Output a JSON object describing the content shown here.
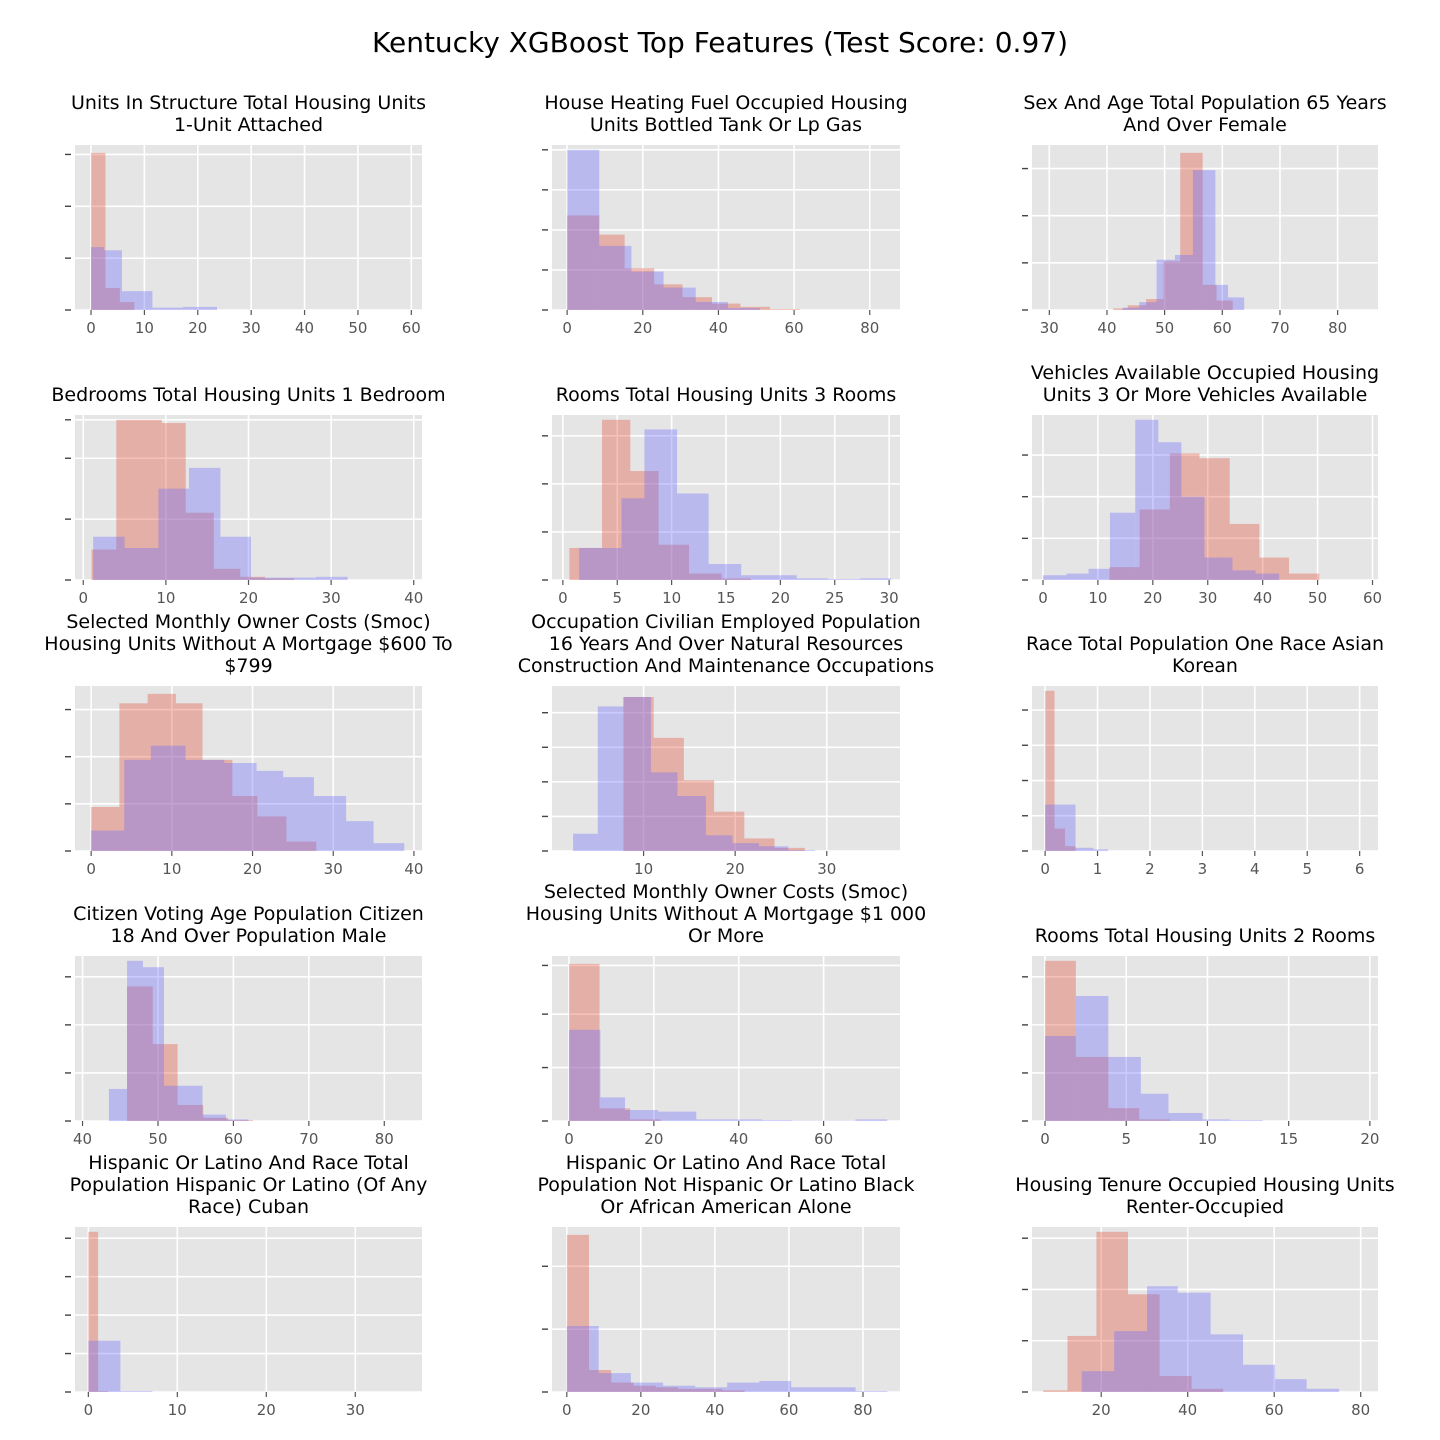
{
  "colors": {
    "panel_bg": "#e5e5e5",
    "grid": "#ffffff",
    "series_a": "#e24a33",
    "series_b": "#6666ff",
    "tick_label": "#555555"
  },
  "chart_data": {
    "title": "Kentucky XGBoost Top Features (Test Score: 0.97)",
    "grid": true,
    "panels": [
      {
        "type": "bar",
        "title": [
          "Units In Structure Total Housing Units",
          "1-Unit Attached"
        ],
        "xlim": [
          -3,
          62
        ],
        "ylim": [
          0,
          1.05
        ],
        "xticks": [
          0,
          10,
          20,
          30,
          40,
          50,
          60
        ],
        "yticks": [
          0,
          0.33,
          0.66,
          0.99
        ],
        "series": [
          {
            "edges": [
              0,
              2.7,
              5.4,
              8.1,
              10.8,
              13.5
            ],
            "values": [
              1.0,
              0.14,
              0.05,
              0.0,
              0.0
            ]
          },
          {
            "edges": [
              0,
              2.4,
              5.8,
              11.5,
              17.2,
              23.6
            ],
            "values": [
              0.4,
              0.38,
              0.12,
              0.015,
              0.02
            ]
          }
        ]
      },
      {
        "type": "bar",
        "title": [
          "House Heating Fuel Occupied Housing",
          "Units Bottled Tank Or Lp Gas"
        ],
        "xlim": [
          -4,
          88
        ],
        "ylim": [
          0,
          1.03
        ],
        "xticks": [
          0,
          20,
          40,
          60,
          80
        ],
        "yticks": [
          0,
          0.25,
          0.5,
          0.75,
          1.0
        ],
        "series": [
          {
            "edges": [
              0,
              8.5,
              15.2,
              23.0,
              30.5,
              38.3,
              45.8,
              53.6,
              61.5
            ],
            "values": [
              0.59,
              0.47,
              0.26,
              0.16,
              0.08,
              0.04,
              0.02,
              0.005
            ]
          },
          {
            "edges": [
              0,
              8.5,
              17.0,
              25.5,
              34.0,
              42.5,
              51.0
            ],
            "values": [
              1.0,
              0.4,
              0.24,
              0.14,
              0.05,
              0.012
            ]
          }
        ]
      },
      {
        "type": "bar",
        "title": [
          "Sex And Age Total Population 65 Years",
          "And Over Female"
        ],
        "xlim": [
          27,
          87
        ],
        "ylim": [
          0,
          1.05
        ],
        "xticks": [
          30,
          40,
          50,
          60,
          70,
          80
        ],
        "yticks": [
          0,
          0.3,
          0.6,
          0.9
        ],
        "series": [
          {
            "edges": [
              41.1,
              43.6,
              46.8,
              49.8,
              52.7,
              56.6,
              59.0,
              61.8
            ],
            "values": [
              0.01,
              0.03,
              0.07,
              0.31,
              1.0,
              0.16,
              0.06
            ]
          },
          {
            "edges": [
              42.7,
              45.6,
              48.6,
              51.8,
              54.9,
              58.8,
              61.0,
              63.8
            ],
            "values": [
              0.015,
              0.05,
              0.32,
              0.35,
              0.89,
              0.16,
              0.08
            ]
          }
        ]
      },
      {
        "type": "bar",
        "title": [
          "Bedrooms Total Housing Units 1 Bedroom"
        ],
        "xlim": [
          -1,
          41
        ],
        "ylim": [
          0,
          1.03
        ],
        "xticks": [
          0,
          10,
          20,
          30,
          40
        ],
        "yticks": [
          0,
          0.38,
          0.76,
          1.0
        ],
        "series": [
          {
            "edges": [
              1.0,
              4.0,
              9.5,
              12.4,
              15.8,
              19.0,
              22.0,
              25.5
            ],
            "values": [
              0.19,
              1.0,
              0.98,
              0.42,
              0.07,
              0.02,
              0.01
            ]
          },
          {
            "edges": [
              1.2,
              5.0,
              9.1,
              12.8,
              16.6,
              20.3,
              24.0,
              28.2,
              32.0
            ],
            "values": [
              0.27,
              0.2,
              0.57,
              0.7,
              0.27,
              0.015,
              0.015,
              0.02
            ]
          }
        ]
      },
      {
        "type": "bar",
        "title": [
          "Rooms Total Housing Units 3 Rooms"
        ],
        "xlim": [
          -1,
          31
        ],
        "ylim": [
          0,
          1.03
        ],
        "xticks": [
          0,
          5,
          10,
          15,
          20,
          25,
          30
        ],
        "yticks": [
          0,
          0.3,
          0.6,
          0.9
        ],
        "series": [
          {
            "edges": [
              0.6,
              3.6,
              6.2,
              8.8,
              11.6,
              14.6,
              17.3
            ],
            "values": [
              0.2,
              1.0,
              0.68,
              0.22,
              0.04,
              0.01
            ]
          },
          {
            "edges": [
              1.5,
              5.4,
              7.5,
              10.5,
              13.4,
              16.4,
              21.5,
              24.4,
              27.3,
              30.2
            ],
            "values": [
              0.2,
              0.51,
              0.94,
              0.54,
              0.1,
              0.03,
              0.01,
              0.005,
              0.01
            ]
          }
        ]
      },
      {
        "type": "bar",
        "title": [
          "Vehicles Available Occupied Housing",
          "Units 3 Or More Vehicles Available"
        ],
        "xlim": [
          -2,
          61
        ],
        "ylim": [
          0,
          1.03
        ],
        "xticks": [
          0,
          10,
          20,
          30,
          40,
          50,
          60
        ],
        "yticks": [
          0,
          0.26,
          0.52,
          0.78
        ],
        "series": [
          {
            "edges": [
              12.1,
              17.6,
              23.1,
              28.5,
              34.0,
              39.4,
              44.8,
              50.3
            ],
            "values": [
              0.08,
              0.44,
              0.79,
              0.76,
              0.35,
              0.14,
              0.04,
              0.01
            ]
          },
          {
            "edges": [
              0,
              4.3,
              8.3,
              12.2,
              16.8,
              21.0,
              25.2,
              29.4,
              34.5,
              38.7,
              43.0
            ],
            "values": [
              0.03,
              0.04,
              0.07,
              0.42,
              1.0,
              0.86,
              0.52,
              0.14,
              0.06,
              0.04
            ]
          }
        ]
      },
      {
        "type": "bar",
        "title": [
          "Selected Monthly Owner Costs (Smoc)",
          "Housing Units Without A Mortgage $600 To",
          "$799"
        ],
        "xlim": [
          -2,
          41
        ],
        "ylim": [
          0,
          1.05
        ],
        "xticks": [
          0,
          10,
          20,
          30,
          40
        ],
        "yticks": [
          0,
          0.3,
          0.6,
          0.9
        ],
        "series": [
          {
            "edges": [
              0,
              3.5,
              7.0,
              10.5,
              13.8,
              17.5,
              20.6,
              24.2,
              27.9
            ],
            "values": [
              0.28,
              0.94,
              1.0,
              0.94,
              0.58,
              0.35,
              0.22,
              0.06
            ]
          },
          {
            "edges": [
              0,
              4.1,
              7.4,
              11.7,
              16.5,
              20.5,
              23.8,
              27.6,
              31.6,
              35.0,
              38.8
            ],
            "values": [
              0.13,
              0.58,
              0.67,
              0.58,
              0.56,
              0.51,
              0.47,
              0.35,
              0.19,
              0.05
            ]
          }
        ]
      },
      {
        "type": "bar",
        "title": [
          "Occupation Civilian Employed Population",
          "16 Years And Over Natural Resources",
          "Construction And Maintenance Occupations"
        ],
        "xlim": [
          0,
          38
        ],
        "ylim": [
          0,
          1.05
        ],
        "xticks": [
          10,
          20,
          30
        ],
        "yticks": [
          0,
          0.22,
          0.44,
          0.66,
          0.88
        ],
        "series": [
          {
            "edges": [
              7.8,
              11.1,
              14.4,
              17.7,
              21.0,
              24.3,
              27.6
            ],
            "values": [
              0.98,
              0.72,
              0.45,
              0.25,
              0.08,
              0.02
            ]
          },
          {
            "edges": [
              2.3,
              5.0,
              7.8,
              10.8,
              13.7,
              16.8,
              19.7,
              22.6,
              25.8,
              28.7
            ],
            "values": [
              0.11,
              0.92,
              0.98,
              0.5,
              0.35,
              0.1,
              0.05,
              0.03,
              0.005
            ]
          }
        ]
      },
      {
        "type": "bar",
        "title": [
          "Race Total Population One Race Asian",
          "Korean"
        ],
        "xlim": [
          -0.25,
          6.35
        ],
        "ylim": [
          0,
          1.03
        ],
        "xticks": [
          0,
          1,
          2,
          3,
          4,
          5,
          6
        ],
        "yticks": [
          0,
          0.22,
          0.44,
          0.66,
          0.88
        ],
        "series": [
          {
            "edges": [
              0,
              0.18,
              0.38,
              0.58
            ],
            "values": [
              1.0,
              0.14,
              0.03
            ]
          },
          {
            "edges": [
              0,
              0.2,
              0.58,
              0.92,
              1.2
            ],
            "values": [
              0.29,
              0.29,
              0.02,
              0.01
            ]
          }
        ]
      },
      {
        "type": "bar",
        "title": [
          "Citizen Voting Age Population Citizen",
          "18 And Over Population Male"
        ],
        "xlim": [
          39,
          85
        ],
        "ylim": [
          0,
          1.03
        ],
        "xticks": [
          40,
          50,
          60,
          70,
          80
        ],
        "yticks": [
          0,
          0.3,
          0.6,
          0.9
        ],
        "series": [
          {
            "edges": [
              45.9,
              49.3,
              52.6,
              56.0,
              59.3,
              62.6
            ],
            "values": [
              0.84,
              0.48,
              0.1,
              0.02,
              0.005
            ]
          },
          {
            "edges": [
              43.5,
              45.9,
              48.0,
              50.8,
              52.6,
              55.9,
              59.0,
              62.0
            ],
            "values": [
              0.2,
              1.0,
              0.96,
              0.22,
              0.22,
              0.04,
              0.01
            ]
          }
        ]
      },
      {
        "type": "bar",
        "title": [
          "Selected Monthly Owner Costs (Smoc)",
          "Housing Units Without A Mortgage $1 000",
          "Or More"
        ],
        "xlim": [
          -4,
          78
        ],
        "ylim": [
          0,
          1.05
        ],
        "xticks": [
          0,
          20,
          40,
          60
        ],
        "yticks": [
          0,
          0.34,
          0.68,
          0.99
        ],
        "series": [
          {
            "edges": [
              0,
              7.2,
              14.4,
              21.6
            ],
            "values": [
              1.0,
              0.08,
              0.01
            ]
          },
          {
            "edges": [
              0,
              7.4,
              13.2,
              21.0,
              30.0,
              38.0,
              45.5,
              52.5,
              60.0,
              67.5,
              75.0
            ],
            "values": [
              0.58,
              0.15,
              0.07,
              0.06,
              0.01,
              0.01,
              0.005,
              0.002,
              0.002,
              0.01
            ]
          }
        ]
      },
      {
        "type": "bar",
        "title": [
          "Rooms Total Housing Units 2 Rooms"
        ],
        "xlim": [
          -0.8,
          20.5
        ],
        "ylim": [
          0,
          1.03
        ],
        "xticks": [
          0,
          5,
          10,
          15,
          20
        ],
        "yticks": [
          0,
          0.3,
          0.6,
          0.9
        ],
        "series": [
          {
            "edges": [
              0,
              1.9,
              3.9,
              5.8,
              7.7,
              9.7
            ],
            "values": [
              1.0,
              0.4,
              0.08,
              0.01,
              0.002
            ]
          },
          {
            "edges": [
              0,
              1.9,
              3.9,
              5.9,
              7.6,
              9.7,
              11.4,
              13.4
            ],
            "values": [
              0.53,
              0.78,
              0.4,
              0.17,
              0.05,
              0.01,
              0.005
            ]
          }
        ]
      },
      {
        "type": "bar",
        "title": [
          "Hispanic Or Latino And Race Total",
          "Population Hispanic Or Latino (Of Any",
          "Race) Cuban"
        ],
        "xlim": [
          -1.5,
          37.5
        ],
        "ylim": [
          0,
          1.03
        ],
        "xticks": [
          0,
          10,
          20,
          30
        ],
        "yticks": [
          0,
          0.24,
          0.48,
          0.72,
          0.96
        ],
        "series": [
          {
            "edges": [
              0,
              1.1,
              2.2
            ],
            "values": [
              1.0,
              0.005
            ]
          },
          {
            "edges": [
              0,
              3.6,
              7.2
            ],
            "values": [
              0.32,
              0.005
            ]
          }
        ]
      },
      {
        "type": "bar",
        "title": [
          "Hispanic Or Latino And Race Total",
          "Population Not Hispanic Or Latino Black",
          "Or African American Alone"
        ],
        "xlim": [
          -4,
          90
        ],
        "ylim": [
          0,
          1.05
        ],
        "xticks": [
          0,
          20,
          40,
          60,
          80
        ],
        "yticks": [
          0,
          0.4,
          0.8
        ],
        "series": [
          {
            "edges": [
              0,
              6.0,
              12.0,
              18.0,
              24.0,
              30.0,
              36.0,
              42.0,
              48.0
            ],
            "values": [
              1.0,
              0.14,
              0.06,
              0.04,
              0.03,
              0.02,
              0.02,
              0.01
            ]
          },
          {
            "edges": [
              0,
              8.6,
              17.3,
              26.0,
              34.7,
              43.3,
              52.0,
              60.6,
              69.3,
              78.0,
              86.6
            ],
            "values": [
              0.42,
              0.12,
              0.06,
              0.04,
              0.03,
              0.06,
              0.07,
              0.03,
              0.03,
              0.005
            ]
          }
        ]
      },
      {
        "type": "bar",
        "title": [
          "Housing Tenure Occupied Housing Units",
          "Renter-Occupied"
        ],
        "xlim": [
          4,
          84
        ],
        "ylim": [
          0,
          1.03
        ],
        "xticks": [
          20,
          40,
          60,
          80
        ],
        "yticks": [
          0,
          0.32,
          0.64,
          0.96
        ],
        "series": [
          {
            "edges": [
              6.6,
              12.2,
              18.9,
              26.2,
              33.5,
              40.9,
              48.2
            ],
            "values": [
              0.01,
              0.35,
              1.0,
              0.61,
              0.1,
              0.02
            ]
          },
          {
            "edges": [
              15.5,
              23.0,
              30.6,
              37.7,
              45.3,
              52.8,
              60.2,
              67.5,
              75.0
            ],
            "values": [
              0.13,
              0.38,
              0.66,
              0.62,
              0.36,
              0.17,
              0.08,
              0.02
            ]
          }
        ]
      }
    ]
  }
}
